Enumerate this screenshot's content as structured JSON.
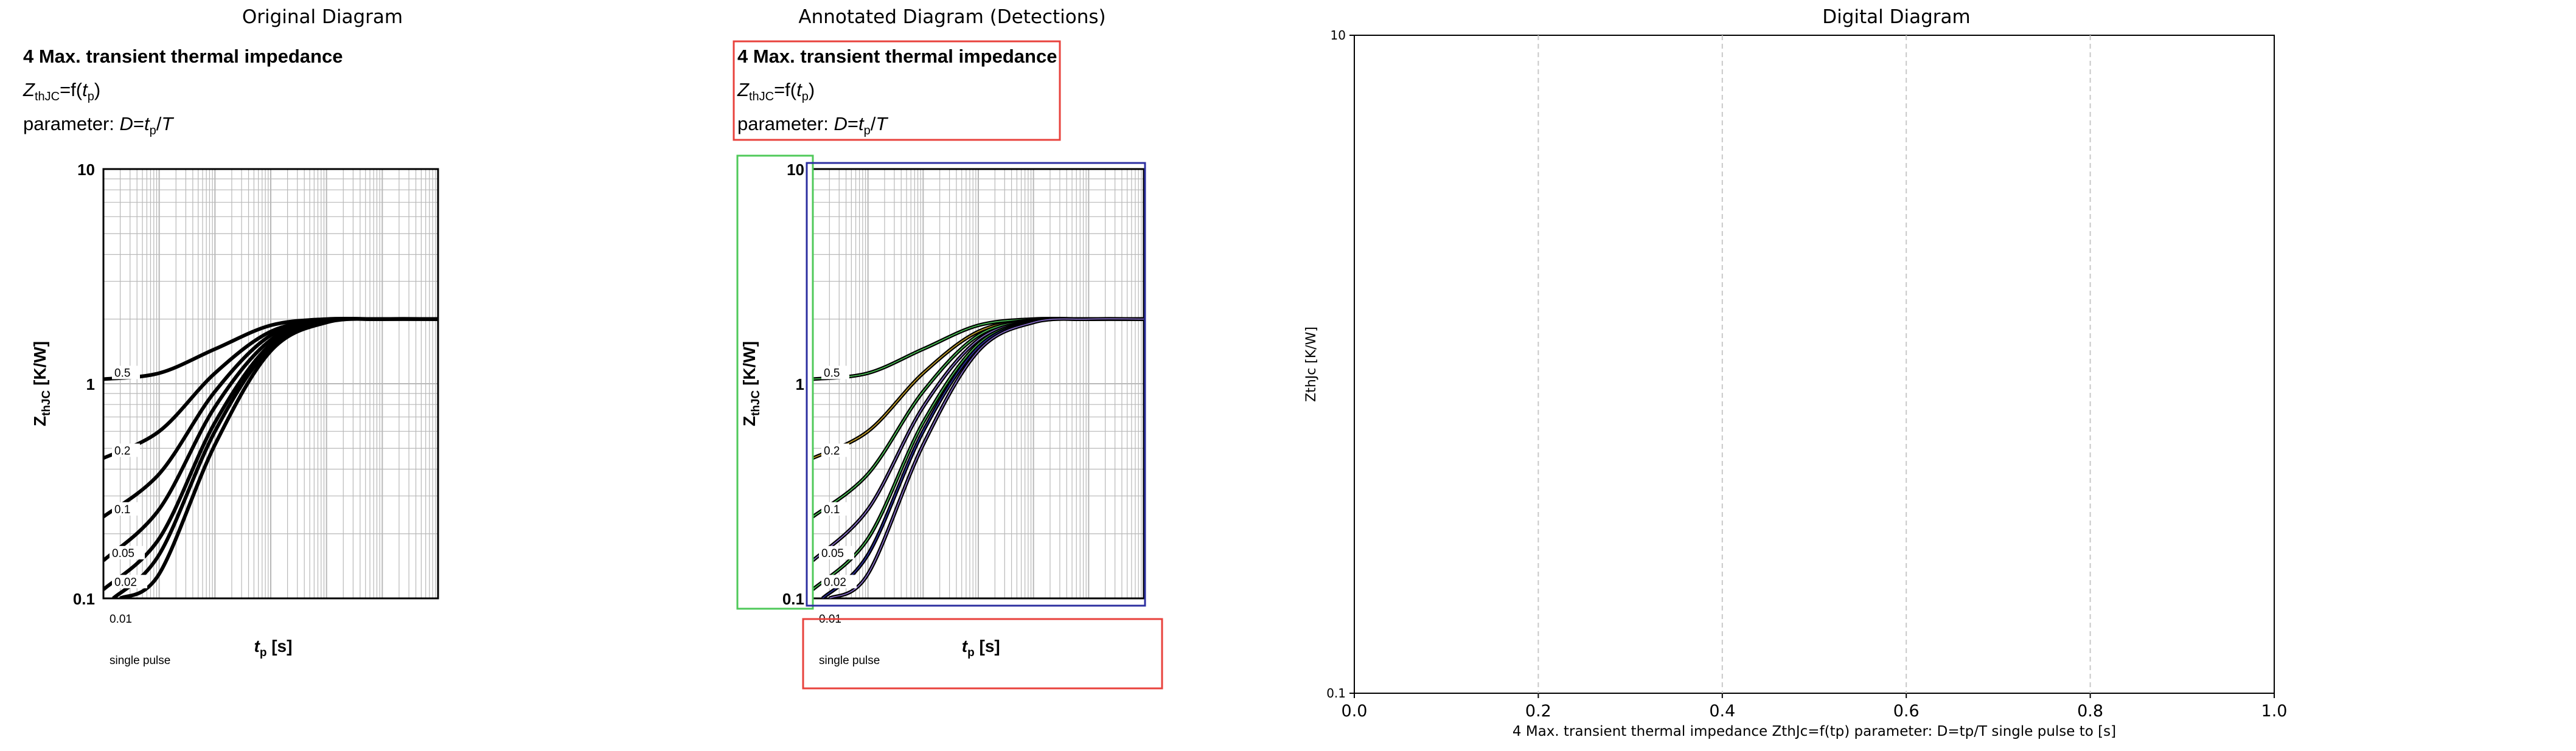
{
  "panels": {
    "original": {
      "title": "Original Diagram"
    },
    "annotated": {
      "title": "Annotated Diagram (Detections)"
    },
    "digital": {
      "title": "Digital Diagram"
    }
  },
  "figure": {
    "heading": "4 Max. transient thermal impedance",
    "formula": {
      "z": "Z",
      "z_sub": "thJC",
      "eq": "=f(",
      "t": "t",
      "t_sub": "p",
      "close": ")"
    },
    "parameter": {
      "prefix": "parameter: ",
      "d": "D",
      "eq": "=",
      "t": "t",
      "t_sub": "p",
      "slash": "/",
      "T": "T"
    },
    "y_axis_label": {
      "z": "Z",
      "sub": "thJC",
      "unit": " [K/W]"
    },
    "x_axis_label": {
      "t": "t",
      "sub": "p",
      "unit": " [s]"
    },
    "y_ticks": [
      "10",
      "1",
      "0.1"
    ],
    "curve_labels": [
      "0.5",
      "0.2",
      "0.1",
      "0.05",
      "0.02",
      "0.01",
      "single pulse"
    ]
  },
  "digital": {
    "ylabel": "ZthJc [K/W]",
    "xlabel": "4 Max. transient thermal impedance ZthJc=f(tp) parameter: D=tp/T single pulse to [s]",
    "y_ticks": [
      "10",
      "0.1"
    ],
    "x_ticks": [
      "0.0",
      "0.2",
      "0.4",
      "0.6",
      "0.8",
      "1.0"
    ]
  },
  "colors": {
    "detect_red": "#e8423c",
    "detect_green": "#4fc95a",
    "detect_blue": "#2c2fa0",
    "grid": "#b8b8b8",
    "digital_grid": "#c8c8c8"
  },
  "chart_data": [
    {
      "type": "line",
      "title": "4 Max. transient thermal impedance",
      "xlabel": "tp [s]",
      "ylabel": "ZthJC [K/W]",
      "yscale": "log",
      "xscale": "log",
      "ylim": [
        0.1,
        10
      ],
      "series": [
        {
          "name": "0.5",
          "x": [
            1e-06,
            1e-05,
            0.0001,
            0.001,
            0.01,
            0.1,
            1
          ],
          "values": [
            1.05,
            1.12,
            1.45,
            1.87,
            2.0,
            2.0,
            2.0
          ]
        },
        {
          "name": "0.2",
          "x": [
            1e-06,
            1e-05,
            0.0001,
            0.001,
            0.01,
            0.1,
            1
          ],
          "values": [
            0.45,
            0.6,
            1.12,
            1.75,
            1.98,
            2.0,
            2.0
          ]
        },
        {
          "name": "0.1",
          "x": [
            1e-06,
            1e-05,
            0.0001,
            0.001,
            0.01,
            0.1,
            1
          ],
          "values": [
            0.24,
            0.38,
            0.92,
            1.68,
            1.97,
            2.0,
            2.0
          ]
        },
        {
          "name": "0.05",
          "x": [
            1e-06,
            1e-05,
            0.0001,
            0.001,
            0.01,
            0.1,
            1
          ],
          "values": [
            0.15,
            0.26,
            0.78,
            1.6,
            1.96,
            2.0,
            2.0
          ]
        },
        {
          "name": "0.02",
          "x": [
            1e-06,
            1e-05,
            0.0001,
            0.001,
            0.01,
            0.1,
            1
          ],
          "values": [
            0.11,
            0.19,
            0.66,
            1.53,
            1.95,
            2.0,
            2.0
          ]
        },
        {
          "name": "0.01",
          "x": [
            1.5e-06,
            1e-05,
            0.0001,
            0.001,
            0.01,
            0.1,
            1
          ],
          "values": [
            0.1,
            0.16,
            0.6,
            1.48,
            1.94,
            2.0,
            2.0
          ]
        },
        {
          "name": "single pulse",
          "x": [
            2e-06,
            1e-05,
            0.0001,
            0.001,
            0.01,
            0.1,
            1
          ],
          "values": [
            0.1,
            0.13,
            0.52,
            1.42,
            1.93,
            2.0,
            2.0
          ]
        }
      ]
    },
    {
      "type": "line",
      "title": "Digital Diagram",
      "xlabel": "4 Max. transient thermal impedance ZthJc=f(tp) parameter: D=tp/T single pulse to [s]",
      "ylabel": "ZthJc [K/W]",
      "xlim": [
        0.0,
        1.0
      ],
      "ylim": [
        0.1,
        10
      ],
      "yscale": "log",
      "grid": "x-only, dashed",
      "series": []
    }
  ]
}
